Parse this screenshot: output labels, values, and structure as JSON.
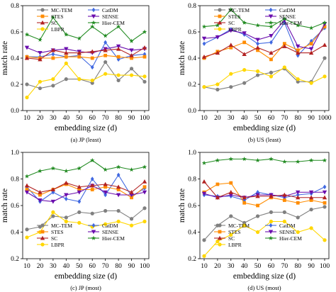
{
  "colors": {
    "MC-TEM": "#808080",
    "CatDM": "#4169e1",
    "STES": "#ff8c00",
    "SENSE": "#6a0dad",
    "SC": "#b22222",
    "Hier-CEM": "#228b22",
    "LBPR": "#ffd700"
  },
  "markers": {
    "MC-TEM": "circle",
    "CatDM": "diamond",
    "STES": "square",
    "SENSE": "tri-down",
    "SC": "tri-up",
    "Hier-CEM": "star",
    "LBPR": "circle"
  },
  "chart_data": [
    {
      "type": "line",
      "caption": "(a)  JP (least)",
      "xlabel": "embedding size (d)",
      "ylabel": "match rate",
      "categories": [
        "10",
        "20",
        "30",
        "40",
        "50",
        "60",
        "70",
        "80",
        "90",
        "100"
      ],
      "ylim": [
        0.0,
        0.8
      ],
      "yticks": [
        "0.0",
        "0.2",
        "0.4",
        "0.6",
        "0.8"
      ],
      "legend_order": [
        "MC-TEM",
        "CatDM",
        "STES",
        "SENSE",
        "SC",
        "Hier-CEM",
        "LBPR"
      ],
      "series": [
        {
          "name": "MC-TEM",
          "values": [
            0.2,
            0.17,
            0.19,
            0.24,
            0.24,
            0.21,
            0.37,
            0.23,
            0.32,
            0.22
          ]
        },
        {
          "name": "CatDM",
          "values": [
            0.41,
            0.41,
            0.43,
            0.41,
            0.42,
            0.33,
            0.52,
            0.39,
            0.42,
            0.43
          ]
        },
        {
          "name": "STES",
          "values": [
            0.41,
            0.4,
            0.4,
            0.41,
            0.41,
            0.4,
            0.42,
            0.41,
            0.4,
            0.41
          ]
        },
        {
          "name": "SENSE",
          "values": [
            0.48,
            0.44,
            0.46,
            0.47,
            0.45,
            0.44,
            0.47,
            0.49,
            0.46,
            0.47
          ]
        },
        {
          "name": "SC",
          "values": [
            0.4,
            0.39,
            0.46,
            0.44,
            0.44,
            0.45,
            0.46,
            0.47,
            0.42,
            0.48
          ]
        },
        {
          "name": "Hier-CEM",
          "values": [
            0.58,
            0.54,
            0.71,
            0.58,
            0.55,
            0.64,
            0.57,
            0.64,
            0.53,
            0.6
          ]
        },
        {
          "name": "LBPR",
          "values": [
            0.1,
            0.22,
            0.24,
            0.36,
            0.24,
            0.23,
            0.28,
            0.27,
            0.27,
            0.26
          ]
        }
      ]
    },
    {
      "type": "line",
      "caption": "(b)  US (least)",
      "xlabel": "embedding size (d)",
      "ylabel": "match rate",
      "categories": [
        "10",
        "20",
        "30",
        "40",
        "50",
        "60",
        "70",
        "80",
        "90",
        "1000"
      ],
      "ylim": [
        0.0,
        0.8
      ],
      "yticks": [
        "0.0",
        "0.2",
        "0.4",
        "0.6",
        "0.8"
      ],
      "legend_order": [
        "MC-TEM",
        "CatDM",
        "STES",
        "SENSE",
        "SC",
        "Hier-CEM",
        "LBPR"
      ],
      "series": [
        {
          "name": "MC-TEM",
          "values": [
            0.18,
            0.16,
            0.18,
            0.21,
            0.27,
            0.29,
            0.32,
            0.22,
            0.22,
            0.4
          ]
        },
        {
          "name": "CatDM",
          "values": [
            0.51,
            0.56,
            0.62,
            0.58,
            0.51,
            0.52,
            0.67,
            0.42,
            0.53,
            0.63
          ]
        },
        {
          "name": "STES",
          "values": [
            0.4,
            0.45,
            0.48,
            0.52,
            0.46,
            0.39,
            0.51,
            0.46,
            0.51,
            0.64
          ]
        },
        {
          "name": "SENSE",
          "values": [
            0.55,
            0.56,
            0.61,
            0.59,
            0.54,
            0.57,
            0.69,
            0.49,
            0.47,
            0.66
          ]
        },
        {
          "name": "SC",
          "values": [
            0.41,
            0.44,
            0.5,
            0.43,
            0.48,
            0.44,
            0.49,
            0.44,
            0.44,
            0.5
          ]
        },
        {
          "name": "Hier-CEM",
          "values": [
            0.64,
            0.65,
            0.77,
            0.67,
            0.65,
            0.64,
            0.7,
            0.65,
            0.63,
            0.67
          ]
        },
        {
          "name": "LBPR",
          "values": [
            0.18,
            0.2,
            0.28,
            0.31,
            0.3,
            0.26,
            0.33,
            0.24,
            0.21,
            0.26
          ]
        }
      ]
    },
    {
      "type": "line",
      "caption": "(c)  JP (most)",
      "xlabel": "embedding size (d)",
      "ylabel": "match rate",
      "categories": [
        "10",
        "20",
        "30",
        "40",
        "50",
        "60",
        "70",
        "80",
        "90",
        "100"
      ],
      "ylim": [
        0.2,
        1.0
      ],
      "yticks": [
        "0.2",
        "0.4",
        "0.6",
        "0.8",
        "1.0"
      ],
      "legend_order": [
        "MC-TEM",
        "CatDM",
        "STES",
        "SENSE",
        "SC",
        "Hier-CEM",
        "LBPR"
      ],
      "series": [
        {
          "name": "MC-TEM",
          "values": [
            0.42,
            0.44,
            0.52,
            0.51,
            0.55,
            0.54,
            0.56,
            0.56,
            0.5,
            0.58
          ]
        },
        {
          "name": "CatDM",
          "values": [
            0.74,
            0.63,
            0.7,
            0.65,
            0.63,
            0.8,
            0.68,
            0.83,
            0.67,
            0.73
          ]
        },
        {
          "name": "STES",
          "values": [
            0.72,
            0.68,
            0.72,
            0.76,
            0.72,
            0.72,
            0.74,
            0.72,
            0.66,
            0.74
          ]
        },
        {
          "name": "SENSE",
          "values": [
            0.7,
            0.64,
            0.63,
            0.68,
            0.7,
            0.75,
            0.7,
            0.68,
            0.68,
            0.7
          ]
        },
        {
          "name": "SC",
          "values": [
            0.75,
            0.7,
            0.72,
            0.77,
            0.74,
            0.75,
            0.76,
            0.74,
            0.7,
            0.78
          ]
        },
        {
          "name": "Hier-CEM",
          "values": [
            0.82,
            0.86,
            0.88,
            0.86,
            0.88,
            0.94,
            0.87,
            0.89,
            0.87,
            0.89
          ]
        },
        {
          "name": "LBPR",
          "values": [
            0.36,
            0.4,
            0.55,
            0.48,
            0.47,
            0.44,
            0.46,
            0.48,
            0.45,
            0.48
          ]
        }
      ]
    },
    {
      "type": "line",
      "caption": "(d)  US (most)",
      "xlabel": "embedding size (d)",
      "ylabel": "match rate",
      "categories": [
        "10",
        "20",
        "30",
        "40",
        "50",
        "60",
        "70",
        "80",
        "90",
        "100"
      ],
      "ylim": [
        0.2,
        1.0
      ],
      "yticks": [
        "0.2",
        "0.4",
        "0.6",
        "0.8",
        "1.0"
      ],
      "legend_order": [
        "MC-TEM",
        "CatDM",
        "STES",
        "SENSE",
        "SC",
        "Hier-CEM",
        "LBPR"
      ],
      "series": [
        {
          "name": "MC-TEM",
          "values": [
            0.34,
            0.45,
            0.52,
            0.47,
            0.52,
            0.55,
            0.55,
            0.51,
            0.57,
            0.59
          ]
        },
        {
          "name": "CatDM",
          "values": [
            0.68,
            0.67,
            0.67,
            0.64,
            0.7,
            0.68,
            0.66,
            0.68,
            0.69,
            0.74
          ]
        },
        {
          "name": "STES",
          "values": [
            0.7,
            0.76,
            0.77,
            0.62,
            0.6,
            0.66,
            0.64,
            0.62,
            0.64,
            0.62
          ]
        },
        {
          "name": "SENSE",
          "values": [
            0.69,
            0.66,
            0.68,
            0.66,
            0.68,
            0.68,
            0.67,
            0.7,
            0.7,
            0.7
          ]
        },
        {
          "name": "SC",
          "values": [
            0.78,
            0.66,
            0.7,
            0.66,
            0.67,
            0.67,
            0.68,
            0.66,
            0.66,
            0.66
          ]
        },
        {
          "name": "Hier-CEM",
          "values": [
            0.92,
            0.94,
            0.95,
            0.95,
            0.94,
            0.95,
            0.93,
            0.93,
            0.94,
            0.94
          ]
        },
        {
          "name": "LBPR",
          "values": [
            0.22,
            0.33,
            0.38,
            0.45,
            0.4,
            0.48,
            0.48,
            0.4,
            0.43,
            0.34
          ]
        }
      ]
    }
  ]
}
